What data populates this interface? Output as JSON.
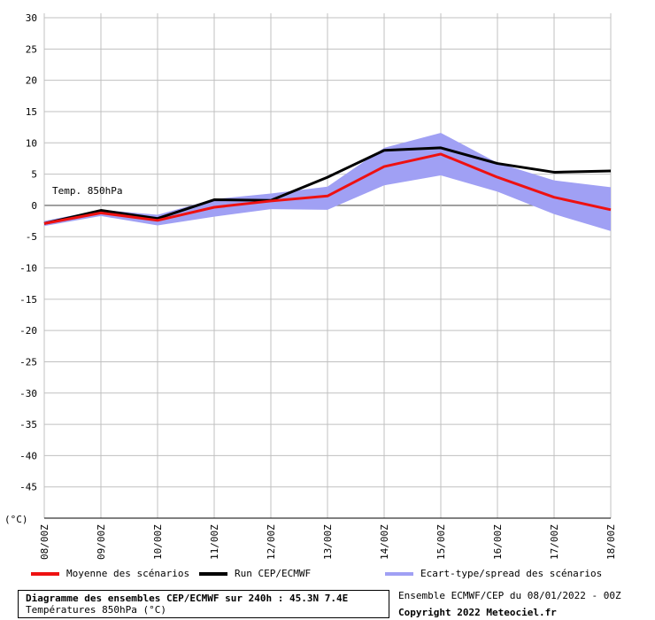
{
  "chart_data": {
    "type": "line",
    "title": "Diagramme des ensembles CEP/ECMWF sur 240h : 45.3N 7.4E",
    "subtitle": "Températures 850hPa (°C)",
    "series_label": "Temp. 850hPa",
    "ylabel": "(°C)",
    "ylim": [
      -50,
      30
    ],
    "yticks": [
      30,
      25,
      20,
      15,
      10,
      5,
      0,
      -5,
      -10,
      -15,
      -20,
      -25,
      -30,
      -35,
      -40,
      -45
    ],
    "categories": [
      "08/00Z",
      "09/00Z",
      "10/00Z",
      "11/00Z",
      "12/00Z",
      "13/00Z",
      "14/00Z",
      "15/00Z",
      "16/00Z",
      "17/00Z",
      "18/00Z"
    ],
    "grid": true,
    "x": [
      0,
      1,
      2,
      3,
      4,
      5,
      6,
      7,
      8,
      9,
      10
    ],
    "series": [
      {
        "name": "Moyenne des scénarios",
        "color": "#ee1111",
        "values": [
          -2.9,
          -1.2,
          -2.4,
          -0.3,
          0.7,
          1.5,
          6.2,
          8.2,
          4.5,
          1.3,
          -0.7
        ]
      },
      {
        "name": "Run CEP/ECMWF",
        "color": "#000000",
        "values": [
          -2.9,
          -0.8,
          -2.1,
          0.9,
          0.8,
          4.5,
          8.8,
          9.2,
          6.7,
          5.3,
          5.5
        ]
      }
    ],
    "spread": {
      "name": "Ecart-type/spread des scénarios",
      "color": "#a0a0f4",
      "upper": [
        -2.5,
        -0.7,
        -1.5,
        1.0,
        1.9,
        3.0,
        9.2,
        11.6,
        6.8,
        4.0,
        2.9
      ],
      "lower": [
        -3.3,
        -1.7,
        -3.2,
        -1.8,
        -0.6,
        -0.7,
        3.2,
        4.8,
        2.2,
        -1.4,
        -4.1
      ]
    }
  },
  "legend": {
    "mean": "Moyenne des scénarios",
    "run": "Run CEP/ECMWF",
    "spread": "Ecart-type/spread des scénarios"
  },
  "footer": {
    "title": "Diagramme des ensembles CEP/ECMWF sur 240h : 45.3N 7.4E",
    "subtitle": "Températures 850hPa (°C)",
    "ensemble": "Ensemble ECMWF/CEP du 08/01/2022 - 00Z",
    "copyright": "Copyright 2022 Meteociel.fr"
  },
  "colors": {
    "mean": "#ee1111",
    "run": "#000000",
    "spread": "#a0a0f4",
    "grid": "#c0c0c0",
    "zero": "#808080"
  }
}
